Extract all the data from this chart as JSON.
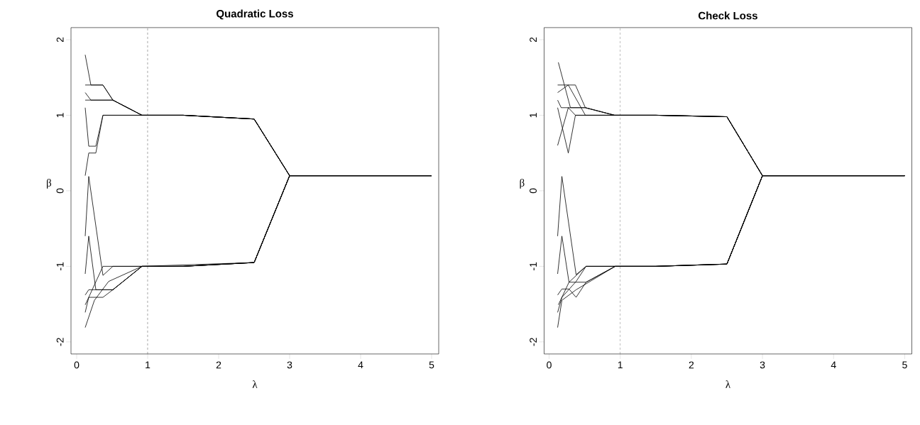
{
  "chart_data": [
    {
      "type": "line",
      "title": "Quadratic Loss",
      "xlabel": "λ",
      "ylabel": "β",
      "xlim": [
        -0.08,
        5.1
      ],
      "ylim": [
        -2.16,
        2.16
      ],
      "xticks": [
        0,
        1,
        2,
        3,
        4,
        5
      ],
      "yticks": [
        -2,
        -1,
        0,
        1,
        2
      ],
      "grid": false,
      "marker": "none",
      "line_style": "solid",
      "ref_lines": [
        {
          "axis": "x",
          "value": 1,
          "color": "#555555",
          "line_style": "dashed"
        }
      ],
      "series": [
        {
          "color": "#000000",
          "x": [
            0.12,
            0.2,
            0.37,
            0.51,
            0.92,
            1.5,
            2.5,
            3,
            5
          ],
          "values": [
            1.8,
            1.4,
            1.4,
            1.2,
            1.0,
            1.0,
            0.95,
            0.2,
            0.2
          ]
        },
        {
          "color": "#000000",
          "x": [
            0.12,
            0.37,
            0.51,
            0.92,
            1.5,
            2.5,
            3,
            5
          ],
          "values": [
            1.4,
            1.4,
            1.2,
            1.0,
            1.0,
            0.95,
            0.2,
            0.2
          ]
        },
        {
          "color": "#000000",
          "x": [
            0.12,
            0.2,
            0.51,
            0.92,
            1.5,
            2.5,
            3,
            5
          ],
          "values": [
            1.3,
            1.2,
            1.2,
            1.0,
            1.0,
            0.95,
            0.2,
            0.2
          ]
        },
        {
          "color": "#000000",
          "x": [
            0.12,
            0.51,
            0.92,
            1.5,
            2.5,
            3,
            5
          ],
          "values": [
            1.2,
            1.2,
            1.0,
            1.0,
            0.95,
            0.2,
            0.2
          ]
        },
        {
          "color": "#000000",
          "x": [
            0.12,
            0.17,
            0.27,
            0.37,
            0.92,
            1.5,
            2.5,
            3,
            5
          ],
          "values": [
            1.1,
            0.59,
            0.59,
            1.0,
            1.0,
            1.0,
            0.95,
            0.2,
            0.2
          ]
        },
        {
          "color": "#000000",
          "x": [
            0.12,
            0.17,
            0.27,
            0.37,
            0.92,
            1.5,
            2.5,
            3,
            5
          ],
          "values": [
            0.2,
            0.5,
            0.5,
            1.0,
            1.0,
            1.0,
            0.95,
            0.2,
            0.2
          ]
        },
        {
          "color": "#000000",
          "x": [
            0.12,
            0.17,
            0.37,
            0.51,
            0.92,
            1.5,
            2.5,
            3,
            5
          ],
          "values": [
            -0.6,
            0.19,
            -1.12,
            -1.0,
            -1.0,
            -1.0,
            -0.95,
            0.2,
            0.2
          ]
        },
        {
          "color": "#000000",
          "x": [
            0.12,
            0.17,
            0.27,
            0.51,
            0.92,
            1.5,
            2.5,
            3,
            5
          ],
          "values": [
            -1.1,
            -0.6,
            -1.31,
            -1.31,
            -1.0,
            -1.0,
            -0.95,
            0.2,
            0.2
          ]
        },
        {
          "color": "#000000",
          "x": [
            0.12,
            0.17,
            0.51,
            0.92,
            1.5,
            2.5,
            3,
            5
          ],
          "values": [
            -1.38,
            -1.31,
            -1.31,
            -1.0,
            -1.0,
            -0.95,
            0.2,
            0.2
          ]
        },
        {
          "color": "#000000",
          "x": [
            0.12,
            0.17,
            0.37,
            0.51,
            0.92,
            1.5,
            2.5,
            3,
            5
          ],
          "values": [
            -1.51,
            -1.41,
            -1.41,
            -1.31,
            -1.0,
            -1.0,
            -0.95,
            0.2,
            0.2
          ]
        },
        {
          "color": "#000000",
          "x": [
            0.12,
            0.17,
            0.37,
            0.92,
            2.5,
            3,
            5
          ],
          "values": [
            -1.61,
            -1.41,
            -1.0,
            -1.0,
            -0.95,
            0.2,
            0.2
          ]
        },
        {
          "color": "#000000",
          "x": [
            0.12,
            0.25,
            0.45,
            0.92,
            1.5,
            2.5,
            3,
            5
          ],
          "values": [
            -1.81,
            -1.45,
            -1.2,
            -1.0,
            -1.0,
            -0.95,
            0.2,
            0.2
          ]
        }
      ]
    },
    {
      "type": "line",
      "title": "Check Loss",
      "xlabel": "λ",
      "ylabel": "β",
      "xlim": [
        -0.07,
        5.1
      ],
      "ylim": [
        -2.16,
        2.16
      ],
      "xticks": [
        0,
        1,
        2,
        3,
        4,
        5
      ],
      "yticks": [
        -2,
        -1,
        0,
        1,
        2
      ],
      "grid": false,
      "marker": "none",
      "line_style": "solid",
      "ref_lines": [
        {
          "axis": "x",
          "value": 1,
          "color": "#555555",
          "line_style": "dashed"
        }
      ],
      "series": [
        {
          "color": "#000000",
          "x": [
            0.13,
            0.3,
            0.37,
            0.51,
            0.92,
            1.5,
            2.5,
            3,
            5
          ],
          "values": [
            1.7,
            1.1,
            1.1,
            1.1,
            1.0,
            1.0,
            0.98,
            0.2,
            0.2
          ]
        },
        {
          "color": "#000000",
          "x": [
            0.12,
            0.37,
            0.51,
            0.92,
            1.5,
            2.5,
            3,
            5
          ],
          "values": [
            1.4,
            1.4,
            1.1,
            1.0,
            1.0,
            0.98,
            0.2,
            0.2
          ]
        },
        {
          "color": "#000000",
          "x": [
            0.12,
            0.27,
            0.51,
            0.92,
            1.5,
            2.5,
            3,
            5
          ],
          "values": [
            1.3,
            1.4,
            1.0,
            1.0,
            1.0,
            0.98,
            0.2,
            0.2
          ]
        },
        {
          "color": "#000000",
          "x": [
            0.12,
            0.17,
            0.51,
            0.92,
            1.5,
            2.5,
            3,
            5
          ],
          "values": [
            1.2,
            1.1,
            1.1,
            1.0,
            1.0,
            0.98,
            0.2,
            0.2
          ]
        },
        {
          "color": "#000000",
          "x": [
            0.12,
            0.27,
            0.37,
            0.92,
            1.5,
            2.5,
            3,
            5
          ],
          "values": [
            0.6,
            1.1,
            1.0,
            1.0,
            1.0,
            0.98,
            0.2,
            0.2
          ]
        },
        {
          "color": "#000000",
          "x": [
            0.12,
            0.27,
            0.37,
            0.92,
            1.5,
            2.5,
            3,
            5
          ],
          "values": [
            1.1,
            0.5,
            1.0,
            1.0,
            1.0,
            0.98,
            0.2,
            0.2
          ]
        },
        {
          "color": "#000000",
          "x": [
            0.12,
            0.18,
            0.38,
            0.52,
            0.93,
            1.5,
            2.5,
            3,
            5
          ],
          "values": [
            -0.6,
            0.19,
            -1.11,
            -1.0,
            -1.0,
            -1.0,
            -0.97,
            0.2,
            0.2
          ]
        },
        {
          "color": "#000000",
          "x": [
            0.12,
            0.18,
            0.28,
            0.52,
            0.93,
            1.5,
            2.5,
            3,
            5
          ],
          "values": [
            -1.1,
            -0.6,
            -1.21,
            -1.21,
            -1.0,
            -1.0,
            -0.97,
            0.2,
            0.2
          ]
        },
        {
          "color": "#000000",
          "x": [
            0.12,
            0.18,
            0.28,
            0.38,
            0.52,
            0.93,
            1.5,
            2.5,
            3,
            5
          ],
          "values": [
            -1.38,
            -1.3,
            -1.3,
            -1.41,
            -1.21,
            -1.0,
            -1.0,
            -0.97,
            0.2,
            0.2
          ]
        },
        {
          "color": "#000000",
          "x": [
            0.13,
            0.28,
            0.52,
            0.93,
            1.5,
            2.5,
            3,
            5
          ],
          "values": [
            -1.51,
            -1.21,
            -1.0,
            -1.0,
            -1.0,
            -0.97,
            0.2,
            0.2
          ]
        },
        {
          "color": "#000000",
          "x": [
            0.12,
            0.18,
            0.38,
            0.52,
            0.93,
            1.5,
            2.5,
            3,
            5
          ],
          "values": [
            -1.61,
            -1.41,
            -1.2,
            -1.0,
            -1.0,
            -1.0,
            -0.97,
            0.2,
            0.2
          ]
        },
        {
          "color": "#000000",
          "x": [
            0.12,
            0.18,
            0.38,
            0.93,
            1.5,
            2.5,
            3,
            5
          ],
          "values": [
            -1.81,
            -1.45,
            -1.31,
            -1.0,
            -1.0,
            -0.97,
            0.2,
            0.2
          ]
        }
      ]
    }
  ]
}
